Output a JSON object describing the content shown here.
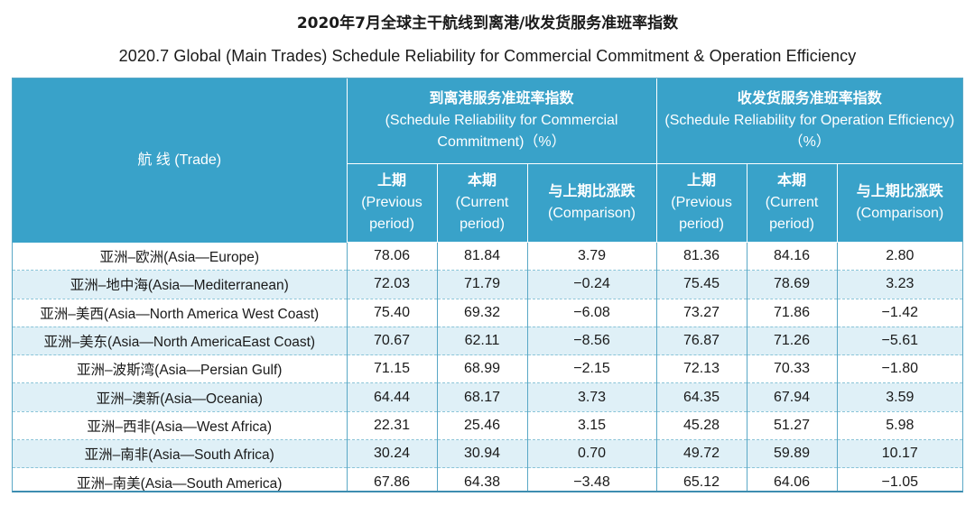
{
  "title": {
    "cn": "2020年7月全球主干航线到离港/收发货服务准班率指数",
    "en": "2020.7 Global (Main Trades) Schedule Reliability for Commercial Commitment & Operation Efficiency"
  },
  "header": {
    "trade": "航 线 (Trade)",
    "group_commercial": {
      "cn": "到离港服务准班率指数",
      "en": "(Schedule Reliability for Commercial Commitment)（%）"
    },
    "group_operation": {
      "cn": "收发货服务准班率指数",
      "en": "(Schedule Reliability for Operation Efficiency)（%）"
    },
    "previous": {
      "cn": "上期",
      "en": "(Previous period)"
    },
    "current": {
      "cn": "本期",
      "en": "(Current period)"
    },
    "comparison": {
      "cn": "与上期比涨跌",
      "en": "(Comparison)"
    }
  },
  "rows": [
    {
      "trade": "亚洲–欧洲(Asia—Europe)",
      "c_prev": "78.06",
      "c_cur": "81.84",
      "c_cmp": "3.79",
      "o_prev": "81.36",
      "o_cur": "84.16",
      "o_cmp": "2.80"
    },
    {
      "trade": "亚洲–地中海(Asia—Mediterranean)",
      "c_prev": "72.03",
      "c_cur": "71.79",
      "c_cmp": "−0.24",
      "o_prev": "75.45",
      "o_cur": "78.69",
      "o_cmp": "3.23"
    },
    {
      "trade": "亚洲–美西(Asia—North America West Coast)",
      "c_prev": "75.40",
      "c_cur": "69.32",
      "c_cmp": "−6.08",
      "o_prev": "73.27",
      "o_cur": "71.86",
      "o_cmp": "−1.42"
    },
    {
      "trade": "亚洲–美东(Asia—North AmericaEast Coast)",
      "c_prev": "70.67",
      "c_cur": "62.11",
      "c_cmp": "−8.56",
      "o_prev": "76.87",
      "o_cur": "71.26",
      "o_cmp": "−5.61"
    },
    {
      "trade": "亚洲–波斯湾(Asia—Persian Gulf)",
      "c_prev": "71.15",
      "c_cur": "68.99",
      "c_cmp": "−2.15",
      "o_prev": "72.13",
      "o_cur": "70.33",
      "o_cmp": "−1.80"
    },
    {
      "trade": "亚洲–澳新(Asia—Oceania)",
      "c_prev": "64.44",
      "c_cur": "68.17",
      "c_cmp": "3.73",
      "o_prev": "64.35",
      "o_cur": "67.94",
      "o_cmp": "3.59"
    },
    {
      "trade": "亚洲–西非(Asia—West Africa)",
      "c_prev": "22.31",
      "c_cur": "25.46",
      "c_cmp": "3.15",
      "o_prev": "45.28",
      "o_cur": "51.27",
      "o_cmp": "5.98"
    },
    {
      "trade": "亚洲–南非(Asia—South Africa)",
      "c_prev": "30.24",
      "c_cur": "30.94",
      "c_cmp": "0.70",
      "o_prev": "49.72",
      "o_cur": "59.89",
      "o_cmp": "10.17"
    },
    {
      "trade": "亚洲–南美(Asia—South America)",
      "c_prev": "67.86",
      "c_cur": "64.38",
      "c_cmp": "−3.48",
      "o_prev": "65.12",
      "o_cur": "64.06",
      "o_cmp": "−1.05"
    }
  ],
  "colors": {
    "header_bg": "#39a2c9",
    "stripe_bg": "#dff0f7",
    "border": "#5aa8c6"
  }
}
